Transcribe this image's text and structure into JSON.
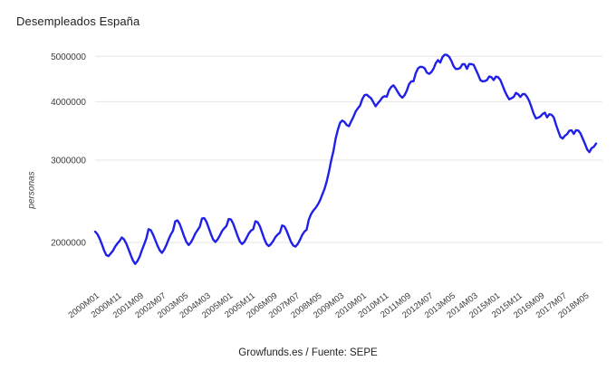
{
  "chart_data": {
    "type": "line",
    "title": "Desempleados España",
    "ylabel": "personas",
    "xlabel": "",
    "source_caption": "Growfunds.es / Fuente: SEPE",
    "legend": "none",
    "grid": "horizontal-only",
    "y_scale": "log",
    "ylim": [
      1570000,
      5300000
    ],
    "y_ticks": [
      2000000,
      3000000,
      4000000,
      5000000
    ],
    "y_tick_labels": [
      "2000000",
      "3000000",
      "4000000",
      "5000000"
    ],
    "x_tick_step_months": 10,
    "x_tick_labels": [
      "2000M01",
      "2000M11",
      "2001M09",
      "2002M07",
      "2003M05",
      "2004M03",
      "2005M01",
      "2005M11",
      "2006M09",
      "2007M07",
      "2008M05",
      "2009M03",
      "2010M01",
      "2010M11",
      "2011M09",
      "2012M07",
      "2013M05",
      "2014M03",
      "2015M01",
      "2015M11",
      "2016M09",
      "2017M07",
      "2018M05"
    ],
    "x_start": "2000M01",
    "x_end": "2018M10",
    "frequency": "monthly",
    "series_name": "Desempleados España",
    "line_color": "#2020e8",
    "grid_color": "#e6e6e6",
    "tick_label_color": "#3c3c3c",
    "values": [
      2110000,
      2085000,
      2040000,
      1985000,
      1925000,
      1880000,
      1870000,
      1895000,
      1920000,
      1960000,
      1990000,
      2015000,
      2050000,
      2030000,
      1990000,
      1935000,
      1880000,
      1830000,
      1800000,
      1825000,
      1865000,
      1925000,
      1980000,
      2040000,
      2135000,
      2125000,
      2080000,
      2025000,
      1970000,
      1925000,
      1900000,
      1930000,
      1975000,
      2030000,
      2080000,
      2120000,
      2220000,
      2230000,
      2190000,
      2125000,
      2060000,
      2005000,
      1975000,
      2000000,
      2040000,
      2090000,
      2125000,
      2160000,
      2250000,
      2255000,
      2215000,
      2150000,
      2085000,
      2030000,
      2005000,
      2030000,
      2070000,
      2115000,
      2145000,
      2170000,
      2245000,
      2240000,
      2195000,
      2130000,
      2065000,
      2010000,
      1985000,
      2005000,
      2045000,
      2090000,
      2120000,
      2135000,
      2220000,
      2210000,
      2165000,
      2100000,
      2035000,
      1985000,
      1965000,
      1985000,
      2015000,
      2055000,
      2080000,
      2100000,
      2175000,
      2165000,
      2120000,
      2060000,
      2005000,
      1970000,
      1960000,
      1985000,
      2025000,
      2075000,
      2110000,
      2130000,
      2240000,
      2300000,
      2340000,
      2370000,
      2410000,
      2460000,
      2530000,
      2600000,
      2700000,
      2830000,
      2990000,
      3130000,
      3330000,
      3480000,
      3605000,
      3645000,
      3620000,
      3565000,
      3545000,
      3630000,
      3710000,
      3810000,
      3870000,
      3925000,
      4050000,
      4130000,
      4140000,
      4100000,
      4065000,
      3985000,
      3910000,
      3970000,
      4020000,
      4085000,
      4110000,
      4100000,
      4230000,
      4300000,
      4335000,
      4270000,
      4190000,
      4120000,
      4080000,
      4130000,
      4225000,
      4360000,
      4420000,
      4422000,
      4600000,
      4710000,
      4750000,
      4745000,
      4715000,
      4615000,
      4587000,
      4625000,
      4705000,
      4834000,
      4908000,
      4848000,
      4981000,
      5040000,
      5035000,
      4989000,
      4891000,
      4764000,
      4699000,
      4699000,
      4724000,
      4811000,
      4809000,
      4701000,
      4814000,
      4812000,
      4795000,
      4684000,
      4572000,
      4450000,
      4420000,
      4427000,
      4448000,
      4527000,
      4512000,
      4448000,
      4525000,
      4512000,
      4452000,
      4333000,
      4215000,
      4120000,
      4047000,
      4068000,
      4094000,
      4176000,
      4149000,
      4094000,
      4150000,
      4153000,
      4095000,
      4011000,
      3891000,
      3767000,
      3683000,
      3697000,
      3720000,
      3765000,
      3789000,
      3703000,
      3760000,
      3750000,
      3702000,
      3573000,
      3462000,
      3362000,
      3336000,
      3382000,
      3410000,
      3467000,
      3474000,
      3413000,
      3476000,
      3470000,
      3422000,
      3336000,
      3252000,
      3162000,
      3120000,
      3182000,
      3203000,
      3255000
    ]
  }
}
